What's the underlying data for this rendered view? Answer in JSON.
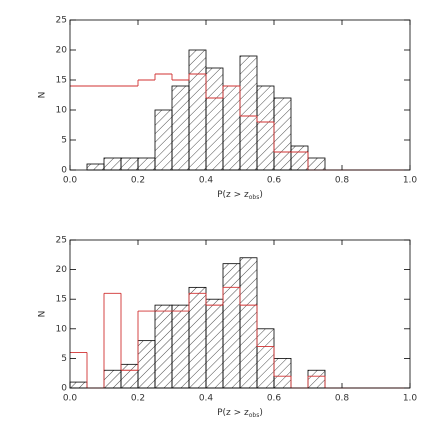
{
  "chart_data": [
    {
      "type": "histogram",
      "ylabel": "N",
      "xlabel_main": "P(z > z",
      "xlabel_sub": "obs",
      "xlabel_end": ")",
      "bins": [
        0,
        0.05,
        0.1,
        0.15,
        0.2,
        0.25,
        0.3,
        0.35,
        0.4,
        0.45,
        0.5,
        0.55,
        0.6,
        0.65,
        0.7,
        0.75,
        0.8,
        0.85,
        0.9,
        0.95,
        1.0
      ],
      "series": [
        {
          "color": "#000000",
          "hatch": true,
          "values": [
            0,
            1,
            2,
            2,
            2,
            10,
            14,
            20,
            17,
            14,
            19,
            14,
            12,
            4,
            2,
            0,
            0,
            0,
            0,
            0
          ]
        },
        {
          "color": "#d03030",
          "hatch": false,
          "values": [
            14,
            14,
            14,
            14,
            15,
            16,
            15,
            16,
            12,
            14,
            9,
            8,
            3,
            3,
            0,
            0,
            0,
            0,
            0,
            0
          ]
        }
      ],
      "xlim": [
        0,
        1.0
      ],
      "ylim": [
        0,
        25
      ],
      "xticks": [
        {
          "value": 0,
          "label": "0.0"
        },
        0.2,
        0.4,
        0.6,
        0.8,
        {
          "value": 1,
          "label": "1.0"
        }
      ],
      "yticks": [
        0,
        5,
        10,
        15,
        20,
        25
      ]
    },
    {
      "type": "histogram",
      "ylabel": "N",
      "xlabel_main": "P(z > z",
      "xlabel_sub": "obs",
      "xlabel_end": ")",
      "bins": [
        0,
        0.05,
        0.1,
        0.15,
        0.2,
        0.25,
        0.3,
        0.35,
        0.4,
        0.45,
        0.5,
        0.55,
        0.6,
        0.65,
        0.7,
        0.75,
        0.8,
        0.85,
        0.9,
        0.95,
        1.0
      ],
      "series": [
        {
          "color": "#000000",
          "hatch": true,
          "values": [
            1,
            0,
            3,
            4,
            8,
            14,
            14,
            17,
            15,
            21,
            22,
            10,
            5,
            0,
            3,
            0,
            0,
            0,
            0,
            0
          ]
        },
        {
          "color": "#d03030",
          "hatch": false,
          "values": [
            6,
            0,
            16,
            3,
            13,
            13,
            13,
            16,
            14,
            17,
            14,
            7,
            2,
            0,
            2,
            0,
            0,
            0,
            0,
            0
          ]
        }
      ],
      "xlim": [
        0,
        1.0
      ],
      "ylim": [
        0,
        25
      ],
      "xticks": [
        {
          "value": 0,
          "label": "0.0"
        },
        0.2,
        0.4,
        0.6,
        0.8,
        {
          "value": 1,
          "label": "1.0"
        }
      ],
      "yticks": [
        0,
        5,
        10,
        15,
        20,
        25
      ]
    }
  ]
}
